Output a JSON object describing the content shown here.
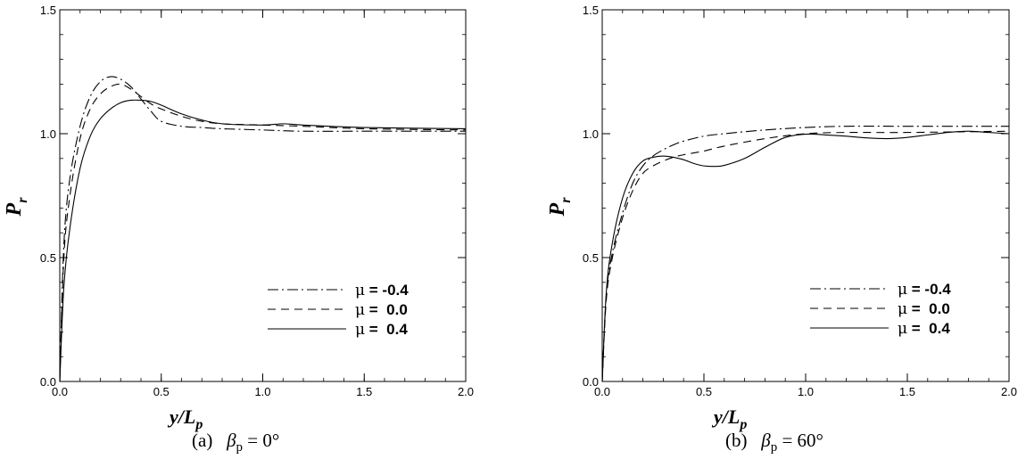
{
  "chart_data": [
    {
      "type": "line",
      "caption": {
        "tag": "(a)",
        "symbol": "β",
        "sub": "p",
        "rest": " = 0°"
      },
      "xlabel": {
        "main": "y/L",
        "sub": "p"
      },
      "ylabel": {
        "main": "P",
        "sub": "r"
      },
      "xlim": [
        0,
        2
      ],
      "ylim": [
        0,
        1.5
      ],
      "xticks": [
        "0.0",
        "0.5",
        "1.0",
        "1.5",
        "2.0"
      ],
      "yticks": [
        "0.0",
        "0.5",
        "1.0",
        "1.5"
      ],
      "grid": false,
      "legend": "lower-right",
      "series": [
        {
          "name": "μ = -0.4",
          "style": "dashdot",
          "x": [
            0,
            0.02,
            0.05,
            0.1,
            0.15,
            0.2,
            0.25,
            0.3,
            0.35,
            0.4,
            0.45,
            0.5,
            0.6,
            0.7,
            0.8,
            1.0,
            1.2,
            1.5,
            2.0
          ],
          "y": [
            0,
            0.55,
            0.82,
            1.03,
            1.15,
            1.21,
            1.23,
            1.22,
            1.19,
            1.14,
            1.09,
            1.05,
            1.03,
            1.025,
            1.02,
            1.015,
            1.01,
            1.01,
            1.01
          ]
        },
        {
          "name": "μ = 0.0",
          "style": "dashed",
          "x": [
            0,
            0.02,
            0.05,
            0.1,
            0.15,
            0.2,
            0.25,
            0.3,
            0.35,
            0.4,
            0.45,
            0.5,
            0.6,
            0.7,
            0.8,
            1.0,
            1.2,
            1.5,
            2.0
          ],
          "y": [
            0,
            0.5,
            0.75,
            0.98,
            1.1,
            1.16,
            1.19,
            1.2,
            1.18,
            1.15,
            1.12,
            1.1,
            1.07,
            1.05,
            1.04,
            1.035,
            1.03,
            1.02,
            1.015
          ]
        },
        {
          "name": "μ = 0.4",
          "style": "solid",
          "x": [
            0,
            0.02,
            0.05,
            0.1,
            0.15,
            0.2,
            0.25,
            0.3,
            0.35,
            0.4,
            0.45,
            0.5,
            0.6,
            0.7,
            0.8,
            1.0,
            1.1,
            1.2,
            1.5,
            2.0
          ],
          "y": [
            0,
            0.38,
            0.62,
            0.86,
            0.99,
            1.06,
            1.1,
            1.125,
            1.135,
            1.135,
            1.13,
            1.115,
            1.08,
            1.055,
            1.04,
            1.035,
            1.04,
            1.035,
            1.025,
            1.02
          ]
        }
      ]
    },
    {
      "type": "line",
      "caption": {
        "tag": "(b)",
        "symbol": "β",
        "sub": "p",
        "rest": " = 60°"
      },
      "xlabel": {
        "main": "y/L",
        "sub": "p"
      },
      "ylabel": {
        "main": "P",
        "sub": "r"
      },
      "xlim": [
        0,
        2
      ],
      "ylim": [
        0,
        1.5
      ],
      "xticks": [
        "0.0",
        "0.5",
        "1.0",
        "1.5",
        "2.0"
      ],
      "yticks": [
        "0.0",
        "0.5",
        "1.0",
        "1.5"
      ],
      "grid": false,
      "legend": "lower-right",
      "series": [
        {
          "name": "μ = -0.4",
          "style": "dashdot",
          "x": [
            0,
            0.02,
            0.05,
            0.1,
            0.15,
            0.2,
            0.25,
            0.3,
            0.35,
            0.4,
            0.5,
            0.6,
            0.8,
            1.0,
            1.2,
            1.5,
            2.0
          ],
          "y": [
            0,
            0.35,
            0.52,
            0.68,
            0.8,
            0.87,
            0.91,
            0.935,
            0.955,
            0.97,
            0.99,
            1.0,
            1.015,
            1.025,
            1.03,
            1.03,
            1.03
          ]
        },
        {
          "name": "μ = 0.0",
          "style": "dashed",
          "x": [
            0,
            0.02,
            0.05,
            0.1,
            0.15,
            0.2,
            0.25,
            0.3,
            0.35,
            0.4,
            0.5,
            0.6,
            0.8,
            1.0,
            1.2,
            1.5,
            2.0
          ],
          "y": [
            0,
            0.33,
            0.5,
            0.66,
            0.77,
            0.84,
            0.87,
            0.89,
            0.905,
            0.915,
            0.93,
            0.95,
            0.98,
            1.0,
            1.005,
            1.005,
            1.01
          ]
        },
        {
          "name": "μ = 0.4",
          "style": "solid",
          "x": [
            0,
            0.02,
            0.05,
            0.1,
            0.15,
            0.2,
            0.25,
            0.3,
            0.35,
            0.4,
            0.45,
            0.5,
            0.55,
            0.6,
            0.7,
            0.8,
            0.9,
            1.0,
            1.1,
            1.2,
            1.3,
            1.4,
            1.5,
            1.6,
            1.7,
            1.8,
            1.9,
            2.0
          ],
          "y": [
            0,
            0.36,
            0.56,
            0.74,
            0.84,
            0.89,
            0.905,
            0.91,
            0.905,
            0.895,
            0.88,
            0.87,
            0.868,
            0.872,
            0.9,
            0.945,
            0.985,
            0.998,
            0.995,
            0.99,
            0.983,
            0.98,
            0.985,
            0.995,
            1.005,
            1.01,
            1.005,
            1.0
          ]
        }
      ]
    }
  ]
}
